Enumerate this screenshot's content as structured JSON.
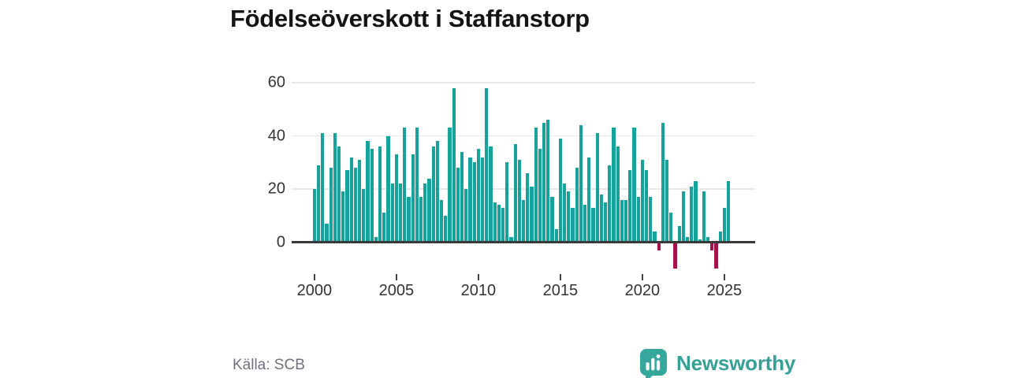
{
  "title": "Födelseöverskott i Staffanstorp",
  "source": "Källa: SCB",
  "brand": {
    "name": "Newsworthy"
  },
  "colors": {
    "positive": "#16a39b",
    "negative": "#a3144a",
    "brand": "#35a096",
    "grid": "#e8e8e8",
    "axis_line": "#3a3a3a",
    "tick": "#444444",
    "text": "#333333",
    "muted": "#71717d",
    "title": "#141414"
  },
  "chart_data": {
    "type": "bar",
    "title": "Födelseöverskott i Staffanstorp",
    "frequency": "quarterly",
    "start": "2000-Q1",
    "end": "2025-Q2",
    "grid": "horizontal",
    "legend": "none",
    "ylim": [
      -12,
      62
    ],
    "y_ticks": [
      0,
      20,
      40,
      60
    ],
    "x_ticks": [
      {
        "label": "2000",
        "year": 2000
      },
      {
        "label": "2005",
        "year": 2005
      },
      {
        "label": "2010",
        "year": 2010
      },
      {
        "label": "2015",
        "year": 2015
      },
      {
        "label": "2020",
        "year": 2020
      },
      {
        "label": "2025",
        "year": 2025
      }
    ],
    "series": [
      {
        "name": "Födelseöverskott",
        "values": [
          20,
          29,
          41,
          7,
          28,
          41,
          36,
          19,
          27,
          32,
          28,
          31,
          20,
          38,
          35,
          2,
          36,
          11,
          40,
          22,
          33,
          22,
          43,
          17,
          33,
          43,
          17,
          22,
          24,
          36,
          38,
          16,
          10,
          43,
          58,
          28,
          34,
          20,
          32,
          30,
          35,
          32,
          58,
          36,
          15,
          14,
          13,
          30,
          2,
          37,
          31,
          16,
          26,
          21,
          43,
          35,
          45,
          46,
          17,
          5,
          39,
          22,
          19,
          13,
          28,
          44,
          14,
          32,
          13,
          41,
          18,
          15,
          29,
          43,
          36,
          16,
          16,
          27,
          43,
          17,
          31,
          27,
          17,
          4,
          -3,
          45,
          31,
          11,
          -10,
          6,
          19,
          2,
          21,
          23,
          1,
          19,
          2,
          -3,
          -10,
          4,
          13,
          23
        ]
      }
    ]
  }
}
